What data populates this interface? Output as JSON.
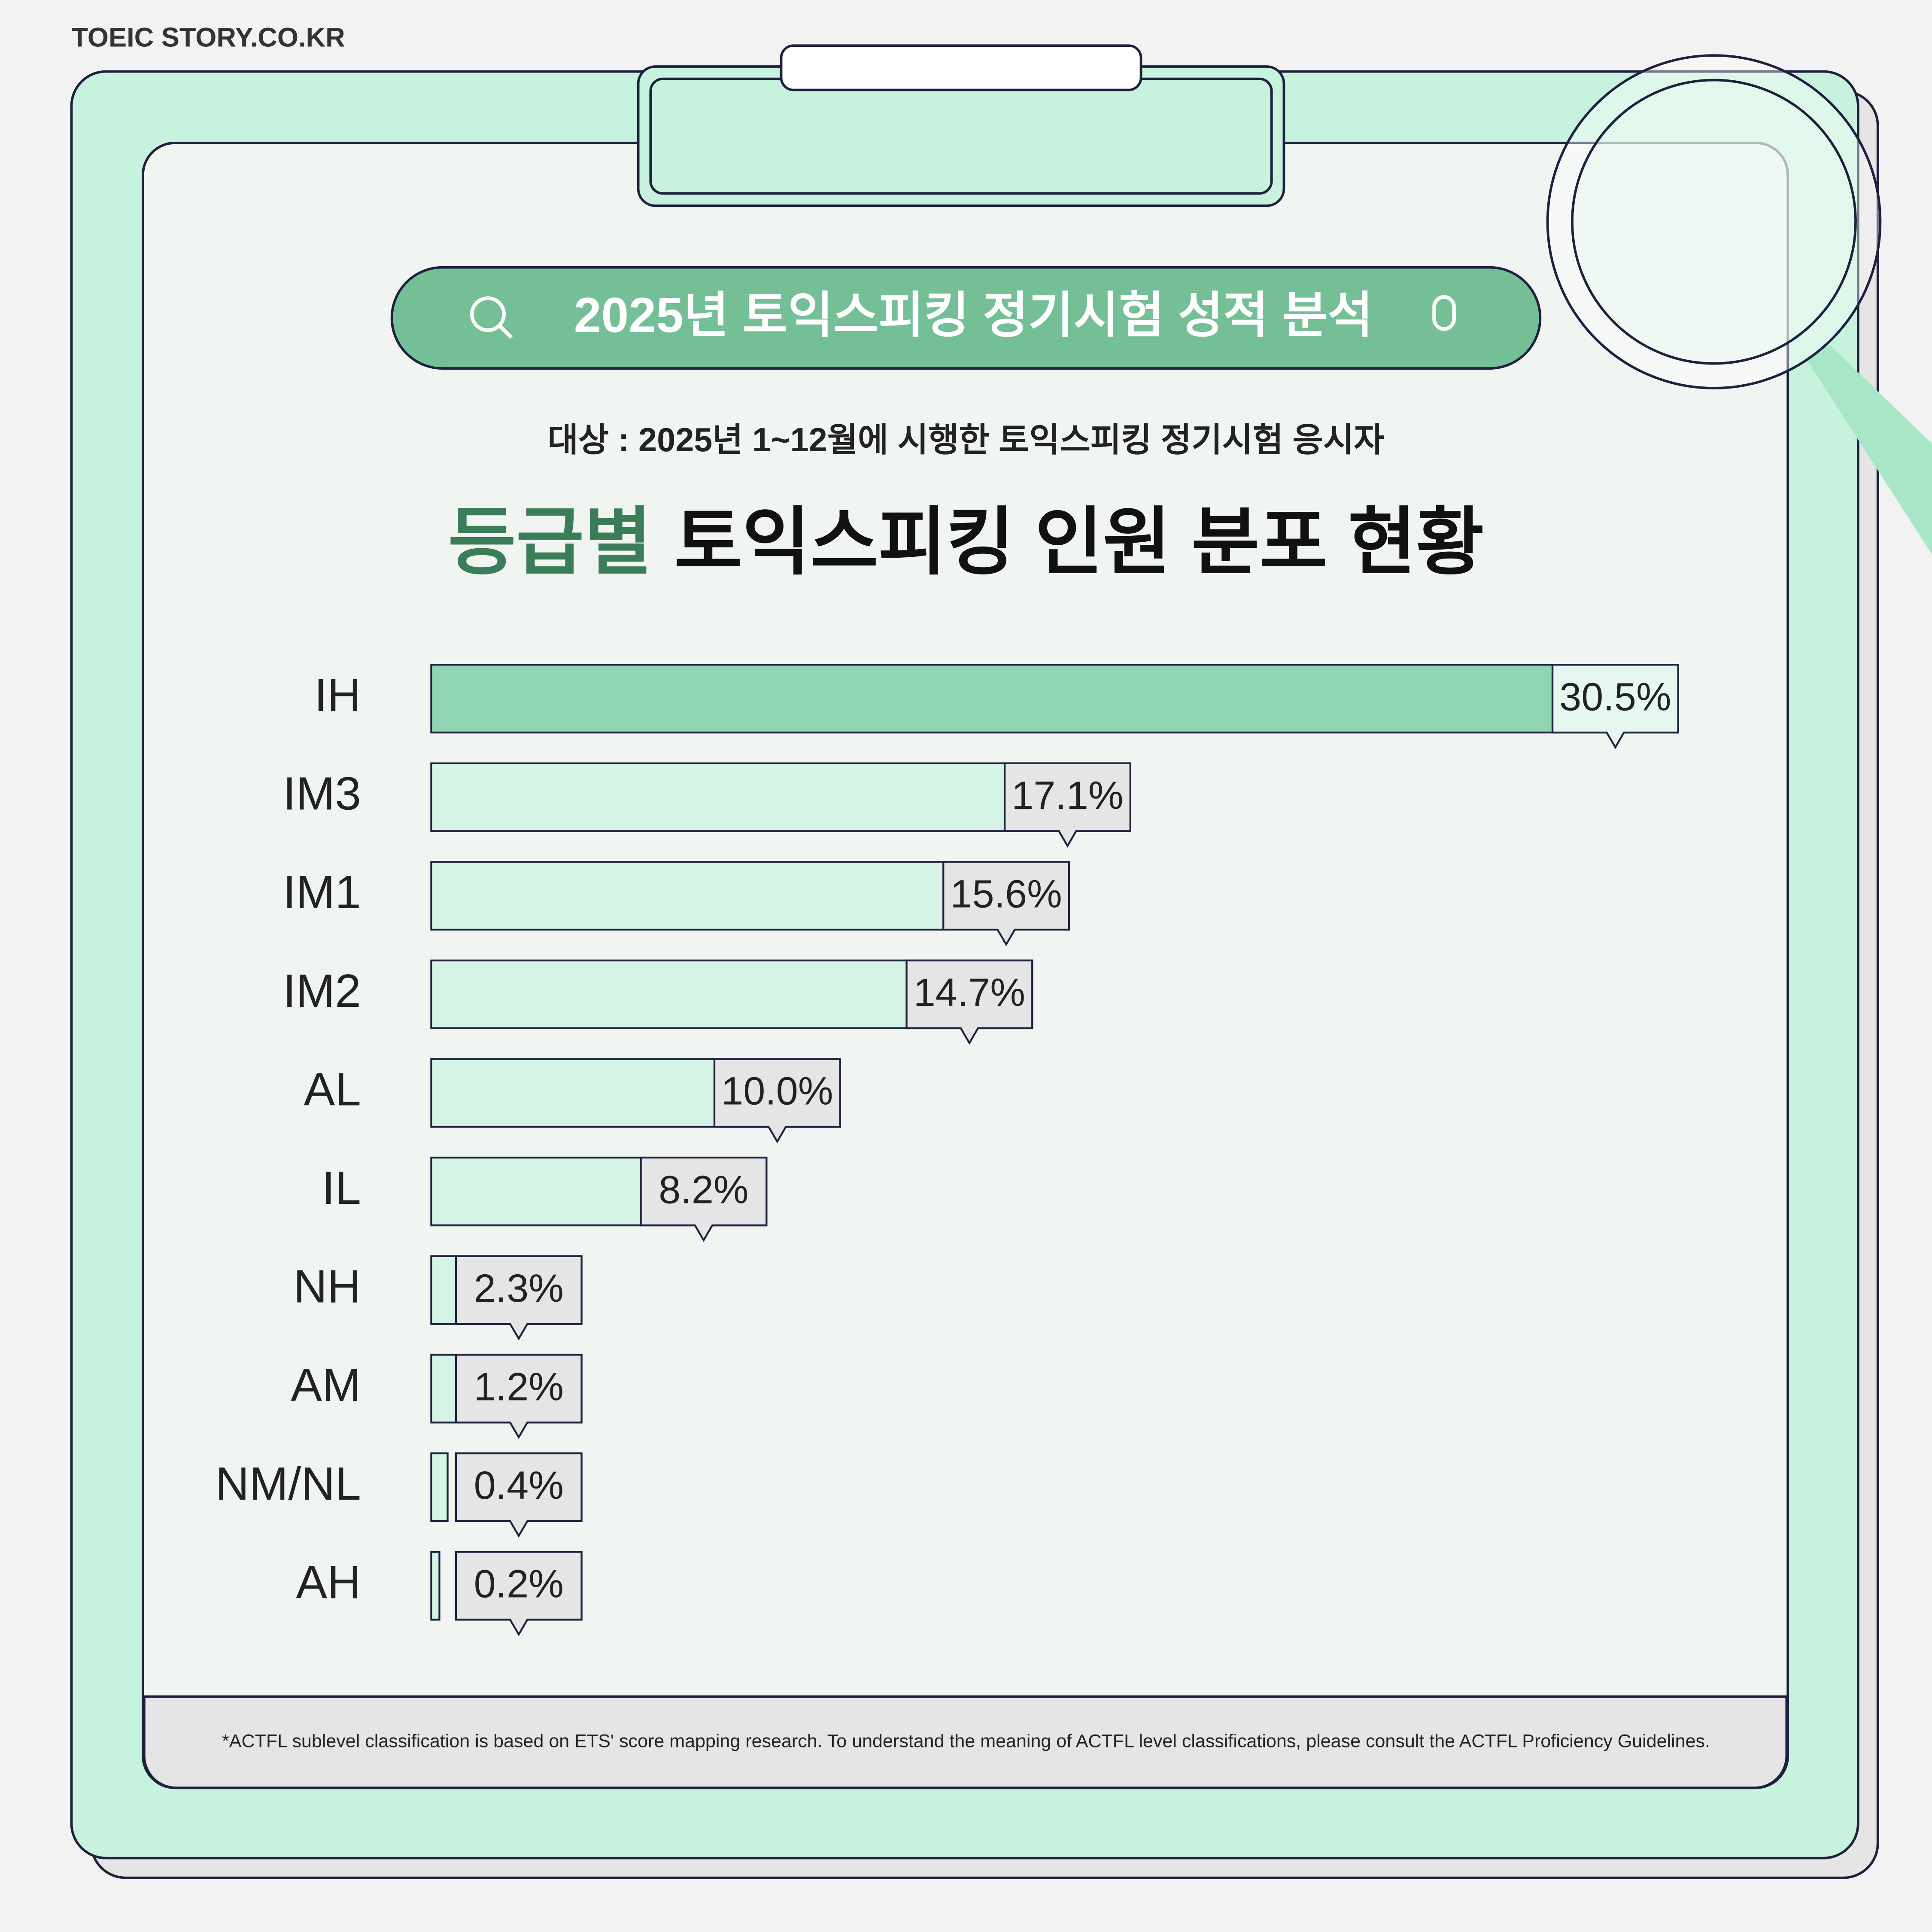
{
  "brand": "TOEIC STORY.CO.KR",
  "banner": "2025년 토익스피킹 정기시험 성적 분석",
  "subtitle": "대상 : 2025년 1~12월에 시행한 토익스피킹 정기시험 응시자",
  "footnote": "*ACTFL sublevel classification is based on ETS' score mapping research. To understand the meaning of ACTFL level classifications, please consult the ACTFL Proficiency Guidelines.",
  "chart_data": {
    "type": "bar",
    "title_highlight": "등급별",
    "title": "토익스피킹 인원 분포 현황",
    "categories": [
      "IH",
      "IM3",
      "IM1",
      "IM2",
      "AL",
      "IL",
      "NH",
      "AM",
      "NM/NL",
      "AH"
    ],
    "values": [
      30.5,
      17.1,
      15.6,
      14.7,
      10.0,
      8.2,
      2.3,
      1.2,
      0.4,
      0.2
    ],
    "value_labels": [
      "30.5%",
      "17.1%",
      "15.6%",
      "14.7%",
      "10.0%",
      "8.2%",
      "2.3%",
      "1.2%",
      "0.4%",
      "0.2%"
    ],
    "color": "#d5f4e6",
    "highlight_color": "#8fd4b3"
  }
}
